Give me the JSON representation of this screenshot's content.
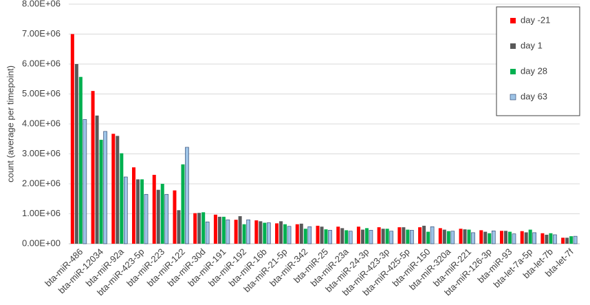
{
  "chart_data": {
    "type": "bar",
    "y_label": "count (average per timepoint)",
    "categories": [
      "bta-miR-486",
      "bta-miR-12034",
      "bta-miR-92a",
      "bta-miR-423-5p",
      "bta-miR-223",
      "bta-miR-122",
      "bta-miR-30d",
      "bta-miR-191",
      "bta-miR-192",
      "bta-miR-16b",
      "bta-miR-21-5p",
      "bta-miR-342",
      "bta-miR-25",
      "bta-miR-23a",
      "bta-miR-24-3p",
      "bta-miR-423-3p",
      "bta-miR-425-5p",
      "bta-miR-150",
      "bta-miR-320a",
      "bta-miR-221",
      "bta-miR-126-3p",
      "bta-miR-93",
      "bta-let-7a-5p",
      "bta-let-7b",
      "bta-let-7f"
    ],
    "series": [
      {
        "name": "day -21",
        "color": "#ff0000",
        "values": [
          7000000,
          5100000,
          3670000,
          2550000,
          2300000,
          1780000,
          1020000,
          970000,
          800000,
          780000,
          680000,
          650000,
          600000,
          570000,
          570000,
          550000,
          550000,
          550000,
          520000,
          500000,
          450000,
          430000,
          420000,
          350000,
          200000
        ]
      },
      {
        "name": "day 1",
        "color": "#595959",
        "values": [
          6000000,
          4280000,
          3600000,
          2150000,
          1800000,
          1120000,
          1030000,
          900000,
          920000,
          750000,
          750000,
          670000,
          570000,
          520000,
          470000,
          500000,
          550000,
          600000,
          470000,
          480000,
          400000,
          430000,
          380000,
          300000,
          200000
        ]
      },
      {
        "name": "day 28",
        "color": "#00b050",
        "values": [
          5570000,
          3470000,
          3020000,
          2150000,
          2000000,
          2650000,
          1050000,
          900000,
          650000,
          700000,
          650000,
          500000,
          480000,
          450000,
          520000,
          500000,
          470000,
          400000,
          420000,
          470000,
          350000,
          400000,
          470000,
          350000,
          250000
        ]
      },
      {
        "name": "day 63",
        "color": "#9dc3e6",
        "values": [
          4150000,
          3750000,
          2230000,
          1650000,
          1650000,
          3220000,
          730000,
          800000,
          800000,
          700000,
          580000,
          570000,
          450000,
          420000,
          450000,
          420000,
          450000,
          570000,
          420000,
          370000,
          430000,
          330000,
          370000,
          300000,
          250000
        ]
      }
    ],
    "ylim": [
      0,
      8000000
    ],
    "yticks": [
      {
        "value": 0,
        "label": "0.00E+00"
      },
      {
        "value": 1000000,
        "label": "1.00E+06"
      },
      {
        "value": 2000000,
        "label": "2.00E+06"
      },
      {
        "value": 3000000,
        "label": "3.00E+06"
      },
      {
        "value": 4000000,
        "label": "4.00E+06"
      },
      {
        "value": 5000000,
        "label": "5.00E+06"
      },
      {
        "value": 6000000,
        "label": "6.00E+06"
      },
      {
        "value": 7000000,
        "label": "7.00E+06"
      },
      {
        "value": 8000000,
        "label": "8.00E+06"
      }
    ],
    "grid": true,
    "legend": "top-right"
  }
}
